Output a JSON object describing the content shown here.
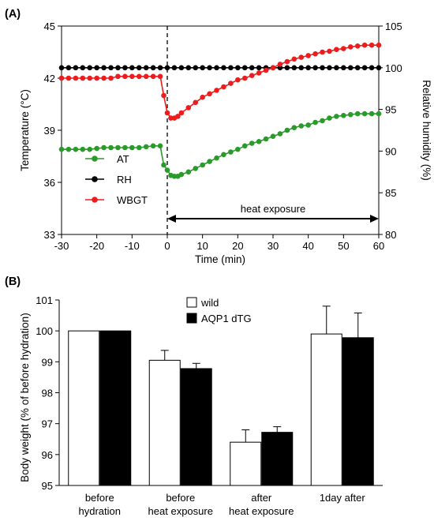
{
  "panel_a_label": "(A)",
  "panel_b_label": "(B)",
  "colors": {
    "AT": "#2a9a2a",
    "RH": "#000000",
    "WBGT": "#ee1c1c"
  },
  "chart_data": [
    {
      "type": "line",
      "xlabel": "Time (min)",
      "ylabel": "Temperature (°C)",
      "y2label": "Relative humidity (%)",
      "xlim": [
        -30,
        60
      ],
      "xticks": [
        -30,
        -20,
        -10,
        0,
        10,
        20,
        30,
        40,
        50,
        60
      ],
      "ylim": [
        33,
        45
      ],
      "yticks": [
        33,
        36,
        39,
        42,
        45
      ],
      "y2lim": [
        80,
        105
      ],
      "y2ticks": [
        80,
        85,
        90,
        95,
        100,
        105
      ],
      "annotation": "heat exposure",
      "annotation_range": [
        0,
        60
      ],
      "vline_x": 0,
      "legend_position": "lower-left",
      "series": [
        {
          "name": "AT",
          "axis": "left",
          "x": [
            -30,
            -28,
            -26,
            -24,
            -22,
            -20,
            -18,
            -16,
            -14,
            -12,
            -10,
            -8,
            -6,
            -4,
            -2,
            -1,
            0,
            1,
            2,
            3,
            4,
            6,
            8,
            10,
            12,
            14,
            16,
            18,
            20,
            22,
            24,
            26,
            28,
            30,
            32,
            34,
            36,
            38,
            40,
            42,
            44,
            46,
            48,
            50,
            52,
            54,
            56,
            58,
            60
          ],
          "values": [
            37.9,
            37.9,
            37.9,
            37.9,
            37.9,
            37.95,
            38.0,
            38.0,
            38.0,
            38.0,
            38.0,
            38.0,
            38.05,
            38.1,
            38.1,
            37.0,
            36.7,
            36.4,
            36.35,
            36.35,
            36.45,
            36.6,
            36.8,
            37.0,
            37.2,
            37.4,
            37.6,
            37.75,
            37.9,
            38.1,
            38.25,
            38.35,
            38.5,
            38.65,
            38.8,
            39.0,
            39.15,
            39.25,
            39.3,
            39.45,
            39.55,
            39.7,
            39.8,
            39.85,
            39.9,
            39.95,
            39.95,
            39.95,
            39.95
          ]
        },
        {
          "name": "RH",
          "axis": "right",
          "x": [
            -30,
            -28,
            -26,
            -24,
            -22,
            -20,
            -18,
            -16,
            -14,
            -12,
            -10,
            -8,
            -6,
            -4,
            -2,
            0,
            2,
            4,
            6,
            8,
            10,
            12,
            14,
            16,
            18,
            20,
            22,
            24,
            26,
            28,
            30,
            32,
            34,
            36,
            38,
            40,
            42,
            44,
            46,
            48,
            50,
            52,
            54,
            56,
            58,
            60
          ],
          "values": [
            100,
            100,
            100,
            100,
            100,
            100,
            100,
            100,
            100,
            100,
            100,
            100,
            100,
            100,
            100,
            100,
            100,
            100,
            100,
            100,
            100,
            100,
            100,
            100,
            100,
            100,
            100,
            100,
            100,
            100,
            100,
            100,
            100,
            100,
            100,
            100,
            100,
            100,
            100,
            100,
            100,
            100,
            100,
            100,
            100,
            100
          ]
        },
        {
          "name": "WBGT",
          "axis": "left",
          "x": [
            -30,
            -28,
            -26,
            -24,
            -22,
            -20,
            -18,
            -16,
            -14,
            -12,
            -10,
            -8,
            -6,
            -4,
            -2,
            -1,
            0,
            1,
            2,
            3,
            4,
            6,
            8,
            10,
            12,
            14,
            16,
            18,
            20,
            22,
            24,
            26,
            28,
            30,
            32,
            34,
            36,
            38,
            40,
            42,
            44,
            46,
            48,
            50,
            52,
            54,
            56,
            58,
            60
          ],
          "values": [
            42.0,
            42.0,
            42.0,
            42.0,
            42.0,
            42.0,
            42.0,
            42.0,
            42.1,
            42.1,
            42.1,
            42.1,
            42.1,
            42.1,
            42.1,
            41.0,
            40.0,
            39.7,
            39.7,
            39.8,
            40.0,
            40.3,
            40.6,
            40.9,
            41.1,
            41.3,
            41.5,
            41.7,
            41.9,
            42.0,
            42.15,
            42.3,
            42.45,
            42.6,
            42.8,
            42.95,
            43.1,
            43.2,
            43.3,
            43.4,
            43.5,
            43.55,
            43.65,
            43.7,
            43.8,
            43.85,
            43.9,
            43.9,
            43.9
          ]
        }
      ]
    },
    {
      "type": "bar",
      "ylabel": "Body weight (% of before hydration)",
      "ylim": [
        95,
        101
      ],
      "yticks": [
        95,
        96,
        97,
        98,
        99,
        100,
        101
      ],
      "legend_position": "top-center",
      "categories": [
        [
          "before",
          "hydration"
        ],
        [
          "before",
          "heat exposure"
        ],
        [
          "after",
          "heat exposure"
        ],
        [
          "1day after"
        ]
      ],
      "series": [
        {
          "name": "wild",
          "fill": "#ffffff",
          "values": [
            100,
            99.05,
            96.4,
            99.9
          ],
          "errors": [
            0,
            0.32,
            0.4,
            0.9
          ]
        },
        {
          "name": "AQP1 dTG",
          "fill": "#000000",
          "values": [
            100,
            98.78,
            96.72,
            99.78
          ],
          "errors": [
            0,
            0.17,
            0.18,
            0.8
          ]
        }
      ]
    }
  ]
}
